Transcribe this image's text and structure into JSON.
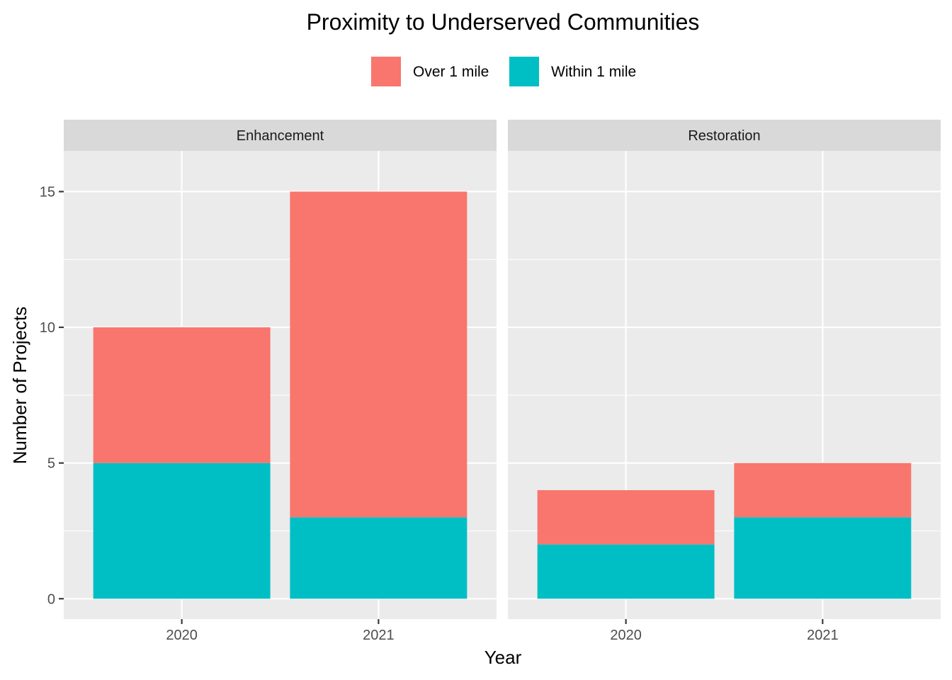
{
  "chart_data": {
    "type": "bar",
    "stacked": true,
    "title": "Proximity to Underserved Communities",
    "xlabel": "Year",
    "ylabel": "Number of Projects",
    "categories": [
      "2020",
      "2021"
    ],
    "ylim": [
      0,
      16.5
    ],
    "yticks": [
      "0",
      "5",
      "10",
      "15"
    ],
    "legend_position": "top",
    "legend": [
      {
        "name": "Over 1 mile",
        "color": "#F8766D"
      },
      {
        "name": "Within 1 mile",
        "color": "#00BFC4"
      }
    ],
    "facets": [
      {
        "label": "Enhancement",
        "series": [
          {
            "name": "Within 1 mile",
            "values": [
              5,
              3
            ]
          },
          {
            "name": "Over 1 mile",
            "values": [
              5,
              12
            ]
          }
        ]
      },
      {
        "label": "Restoration",
        "series": [
          {
            "name": "Within 1 mile",
            "values": [
              2,
              3
            ]
          },
          {
            "name": "Over 1 mile",
            "values": [
              2,
              2
            ]
          }
        ]
      }
    ]
  }
}
